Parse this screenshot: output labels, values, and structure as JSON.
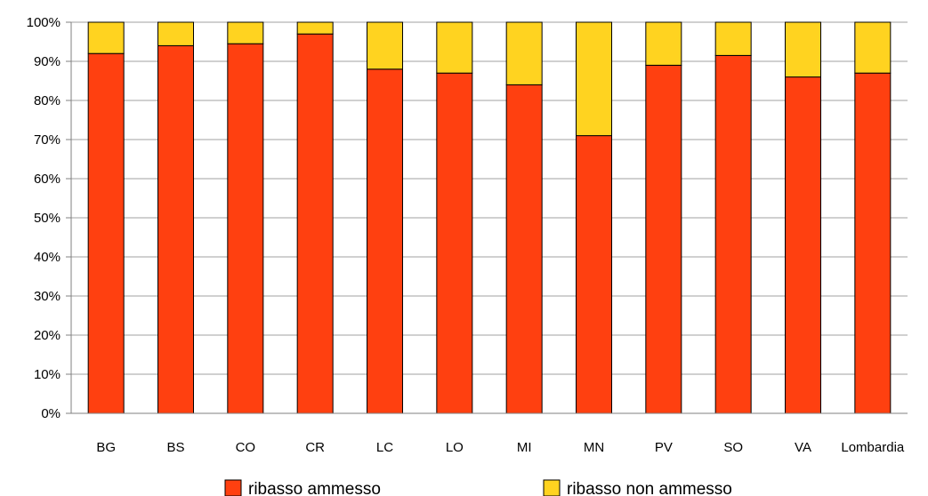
{
  "chart_data": {
    "type": "bar",
    "stacked": true,
    "categories": [
      "BG",
      "BS",
      "CO",
      "CR",
      "LC",
      "LO",
      "MI",
      "MN",
      "PV",
      "SO",
      "VA",
      "Lombardia"
    ],
    "series": [
      {
        "name": "ribasso ammesso",
        "color": "#FF4010",
        "values": [
          92,
          94,
          94.5,
          97,
          88,
          87,
          84,
          71,
          89,
          91.5,
          86,
          87
        ]
      },
      {
        "name": "ribasso non ammesso",
        "color": "#FFD320",
        "values": [
          8,
          6,
          5.5,
          3,
          12,
          13,
          16,
          29,
          11,
          8.5,
          14,
          13
        ]
      }
    ],
    "y_ticks": [
      "0%",
      "10%",
      "20%",
      "30%",
      "40%",
      "50%",
      "60%",
      "70%",
      "80%",
      "90%",
      "100%"
    ],
    "ylim": [
      0,
      100
    ],
    "grid": true,
    "legend_position": "bottom"
  }
}
